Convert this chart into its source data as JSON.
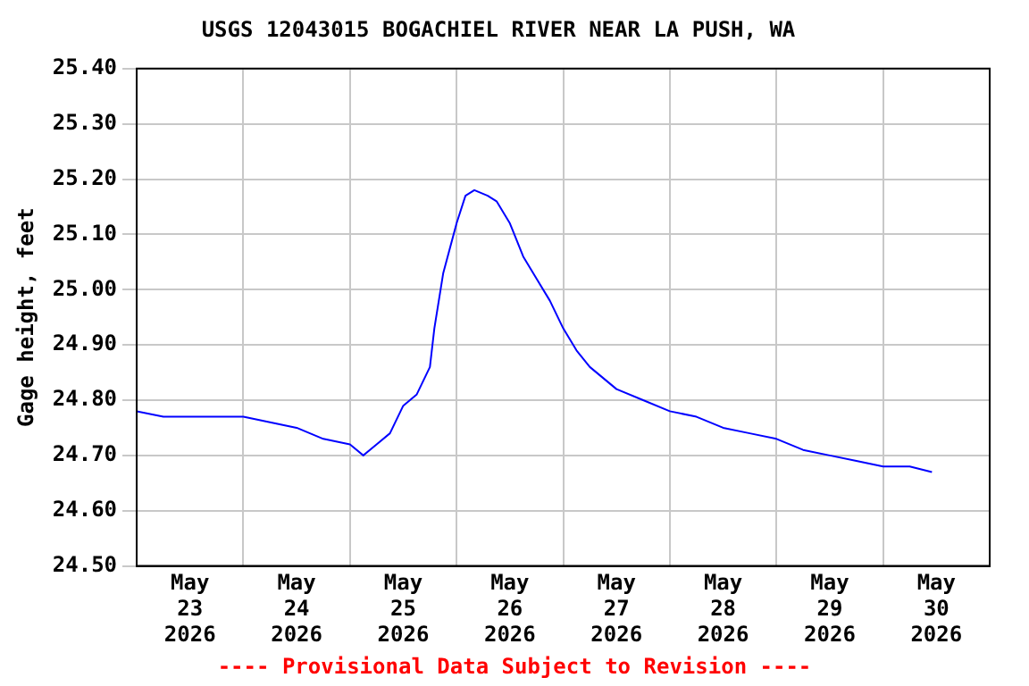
{
  "chart_data": {
    "type": "line",
    "title": "USGS 12043015 BOGACHIEL RIVER NEAR LA PUSH, WA",
    "ylabel": "Gage height, feet",
    "annotations": [
      "---- Provisional Data Subject to Revision ----"
    ],
    "x": [
      "2026-05-23T00:00",
      "2026-05-23T06:00",
      "2026-05-23T12:00",
      "2026-05-24T00:00",
      "2026-05-24T06:00",
      "2026-05-24T12:00",
      "2026-05-24T18:00",
      "2026-05-25T00:00",
      "2026-05-25T03:00",
      "2026-05-25T06:00",
      "2026-05-25T09:00",
      "2026-05-25T12:00",
      "2026-05-25T15:00",
      "2026-05-25T18:00",
      "2026-05-25T19:00",
      "2026-05-25T21:00",
      "2026-05-26T00:00",
      "2026-05-26T02:00",
      "2026-05-26T04:00",
      "2026-05-26T07:00",
      "2026-05-26T09:00",
      "2026-05-26T12:00",
      "2026-05-26T15:00",
      "2026-05-26T18:00",
      "2026-05-26T21:00",
      "2026-05-27T00:00",
      "2026-05-27T03:00",
      "2026-05-27T06:00",
      "2026-05-27T12:00",
      "2026-05-27T18:00",
      "2026-05-28T00:00",
      "2026-05-28T06:00",
      "2026-05-28T12:00",
      "2026-05-28T18:00",
      "2026-05-29T00:00",
      "2026-05-29T06:00",
      "2026-05-29T12:00",
      "2026-05-29T18:00",
      "2026-05-30T00:00",
      "2026-05-30T06:00",
      "2026-05-30T11:00"
    ],
    "series": [
      {
        "color": "#0000ff",
        "values": [
          24.78,
          24.77,
          24.77,
          24.77,
          24.76,
          24.75,
          24.73,
          24.72,
          24.7,
          24.72,
          24.74,
          24.79,
          24.81,
          24.86,
          24.93,
          25.03,
          25.12,
          25.17,
          25.18,
          25.17,
          25.16,
          25.12,
          25.06,
          25.02,
          24.98,
          24.93,
          24.89,
          24.86,
          24.82,
          24.8,
          24.78,
          24.77,
          24.75,
          24.74,
          24.73,
          24.71,
          24.7,
          24.69,
          24.68,
          24.68,
          24.67
        ]
      }
    ],
    "xlim": [
      "2026-05-23T00:00",
      "2026-05-31T00:00"
    ],
    "xticks": [
      {
        "value": "2026-05-24T00:00",
        "label": null
      },
      {
        "value": "2026-05-25T00:00",
        "label": null
      },
      {
        "value": "2026-05-26T00:00",
        "label": null
      },
      {
        "value": "2026-05-27T00:00",
        "label": null
      },
      {
        "value": "2026-05-28T00:00",
        "label": null
      },
      {
        "value": "2026-05-29T00:00",
        "label": null
      },
      {
        "value": "2026-05-30T00:00",
        "label": null
      },
      {
        "value": "2026-05-23T12:00",
        "label": "May\n23\n2026"
      },
      {
        "value": "2026-05-24T12:00",
        "label": "May\n24\n2026"
      },
      {
        "value": "2026-05-25T12:00",
        "label": "May\n25\n2026"
      },
      {
        "value": "2026-05-26T12:00",
        "label": "May\n26\n2026"
      },
      {
        "value": "2026-05-27T12:00",
        "label": "May\n27\n2026"
      },
      {
        "value": "2026-05-28T12:00",
        "label": "May\n28\n2026"
      },
      {
        "value": "2026-05-29T12:00",
        "label": "May\n29\n2026"
      },
      {
        "value": "2026-05-30T12:00",
        "label": "May\n30\n2026"
      }
    ],
    "ylim": [
      24.5,
      25.4
    ],
    "yticks": [
      {
        "value": 24.5,
        "label": "24.50"
      },
      {
        "value": 24.6,
        "label": "24.60"
      },
      {
        "value": 24.7,
        "label": "24.70"
      },
      {
        "value": 24.8,
        "label": "24.80"
      },
      {
        "value": 24.9,
        "label": "24.90"
      },
      {
        "value": 25.0,
        "label": "25.00"
      },
      {
        "value": 25.1,
        "label": "25.10"
      },
      {
        "value": 25.2,
        "label": "25.20"
      },
      {
        "value": 25.3,
        "label": "25.30"
      },
      {
        "value": 25.4,
        "label": "25.40"
      }
    ],
    "grid": true,
    "marker": "none",
    "line_style": "solid"
  }
}
